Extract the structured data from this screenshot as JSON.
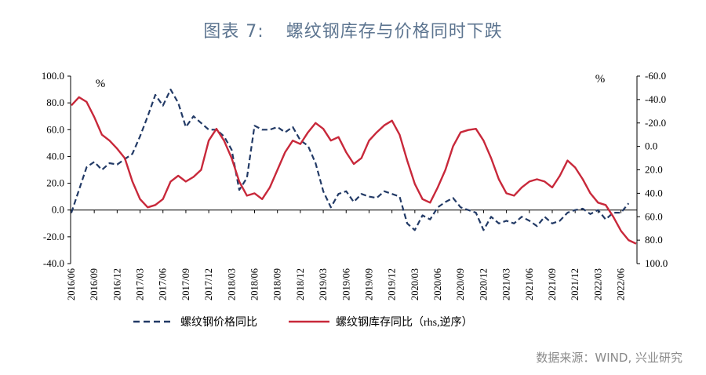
{
  "header": {
    "figure_label": "图表 7:",
    "title": "螺纹钢库存与价格同时下跌"
  },
  "footer": {
    "source": "数据来源：WIND, 兴业研究"
  },
  "colors": {
    "price": "#223a66",
    "inventory": "#c8283a",
    "axis": "#000000"
  },
  "chart_data": {
    "type": "line",
    "left_unit": "%",
    "right_unit": "%",
    "x_tick_labels": [
      "2016/06",
      "2016/09",
      "2016/12",
      "2017/03",
      "2017/06",
      "2017/09",
      "2017/12",
      "2018/03",
      "2018/06",
      "2018/09",
      "2018/12",
      "2019/03",
      "2019/06",
      "2019/09",
      "2019/12",
      "2020/03",
      "2020/06",
      "2020/09",
      "2020/12",
      "2021/03",
      "2021/06",
      "2021/09",
      "2021/12",
      "2022/03",
      "2022/06"
    ],
    "x_range": [
      "2016/06",
      "2022/08"
    ],
    "y_left": {
      "min": -40,
      "max": 100,
      "step": 20,
      "tick_labels": [
        "100.0",
        "80.0",
        "60.0",
        "40.0",
        "20.0",
        "0.0",
        "-20.0",
        "-40.0"
      ]
    },
    "y_right": {
      "min": -60,
      "max": 100,
      "step": 20,
      "inverted": true,
      "tick_labels": [
        "-60.0",
        "-40.0",
        "-20.0",
        "0.0",
        "20.0",
        "40.0",
        "60.0",
        "80.0",
        "100.0"
      ]
    },
    "series": [
      {
        "name": "螺纹钢价格同比",
        "axis": "left",
        "style": "dashed",
        "points": [
          [
            "2016/06",
            -2
          ],
          [
            "2016/07",
            15
          ],
          [
            "2016/08",
            32
          ],
          [
            "2016/09",
            36
          ],
          [
            "2016/10",
            30
          ],
          [
            "2016/11",
            35
          ],
          [
            "2016/12",
            34
          ],
          [
            "2017/01",
            38
          ],
          [
            "2017/02",
            42
          ],
          [
            "2017/03",
            55
          ],
          [
            "2017/04",
            70
          ],
          [
            "2017/05",
            86
          ],
          [
            "2017/06",
            78
          ],
          [
            "2017/07",
            90
          ],
          [
            "2017/08",
            80
          ],
          [
            "2017/09",
            62
          ],
          [
            "2017/10",
            70
          ],
          [
            "2017/11",
            65
          ],
          [
            "2017/12",
            60
          ],
          [
            "2018/01",
            60
          ],
          [
            "2018/02",
            55
          ],
          [
            "2018/03",
            45
          ],
          [
            "2018/04",
            15
          ],
          [
            "2018/05",
            24
          ],
          [
            "2018/06",
            63
          ],
          [
            "2018/07",
            60
          ],
          [
            "2018/08",
            60
          ],
          [
            "2018/09",
            62
          ],
          [
            "2018/10",
            58
          ],
          [
            "2018/11",
            62
          ],
          [
            "2018/12",
            52
          ],
          [
            "2019/01",
            48
          ],
          [
            "2019/02",
            35
          ],
          [
            "2019/03",
            14
          ],
          [
            "2019/04",
            2
          ],
          [
            "2019/05",
            12
          ],
          [
            "2019/06",
            14
          ],
          [
            "2019/07",
            6
          ],
          [
            "2019/08",
            12
          ],
          [
            "2019/09",
            10
          ],
          [
            "2019/10",
            9
          ],
          [
            "2019/11",
            14
          ],
          [
            "2019/12",
            12
          ],
          [
            "2020/01",
            10
          ],
          [
            "2020/02",
            -10
          ],
          [
            "2020/03",
            -15
          ],
          [
            "2020/04",
            -4
          ],
          [
            "2020/05",
            -7
          ],
          [
            "2020/06",
            2
          ],
          [
            "2020/07",
            6
          ],
          [
            "2020/08",
            9
          ],
          [
            "2020/09",
            2
          ],
          [
            "2020/10",
            0
          ],
          [
            "2020/11",
            -2
          ],
          [
            "2020/12",
            -15
          ],
          [
            "2021/01",
            -5
          ],
          [
            "2021/02",
            -10
          ],
          [
            "2021/03",
            -8
          ],
          [
            "2021/04",
            -10
          ],
          [
            "2021/05",
            -5
          ],
          [
            "2021/06",
            -8
          ],
          [
            "2021/07",
            -12
          ],
          [
            "2021/08",
            -5
          ],
          [
            "2021/09",
            -10
          ],
          [
            "2021/10",
            -8
          ],
          [
            "2021/11",
            -2
          ],
          [
            "2021/12",
            0
          ],
          [
            "2022/01",
            1
          ],
          [
            "2022/02",
            -3
          ],
          [
            "2022/03",
            0
          ],
          [
            "2022/04",
            -7
          ],
          [
            "2022/05",
            -2
          ],
          [
            "2022/06",
            -2
          ],
          [
            "2022/07",
            5
          ]
        ]
      },
      {
        "name": "螺纹钢库存同比（rhs,逆序）",
        "axis": "right",
        "style": "solid",
        "points": [
          [
            "2016/06",
            -35
          ],
          [
            "2016/07",
            -42
          ],
          [
            "2016/08",
            -38
          ],
          [
            "2016/09",
            -25
          ],
          [
            "2016/10",
            -10
          ],
          [
            "2016/11",
            -5
          ],
          [
            "2016/12",
            2
          ],
          [
            "2017/01",
            10
          ],
          [
            "2017/02",
            30
          ],
          [
            "2017/03",
            45
          ],
          [
            "2017/04",
            52
          ],
          [
            "2017/05",
            50
          ],
          [
            "2017/06",
            45
          ],
          [
            "2017/07",
            30
          ],
          [
            "2017/08",
            25
          ],
          [
            "2017/09",
            30
          ],
          [
            "2017/10",
            26
          ],
          [
            "2017/11",
            20
          ],
          [
            "2017/12",
            -5
          ],
          [
            "2018/01",
            -15
          ],
          [
            "2018/02",
            -5
          ],
          [
            "2018/03",
            10
          ],
          [
            "2018/04",
            30
          ],
          [
            "2018/05",
            42
          ],
          [
            "2018/06",
            40
          ],
          [
            "2018/07",
            45
          ],
          [
            "2018/08",
            35
          ],
          [
            "2018/09",
            20
          ],
          [
            "2018/10",
            5
          ],
          [
            "2018/11",
            -5
          ],
          [
            "2018/12",
            -2
          ],
          [
            "2019/01",
            -12
          ],
          [
            "2019/02",
            -20
          ],
          [
            "2019/03",
            -15
          ],
          [
            "2019/04",
            -5
          ],
          [
            "2019/05",
            -8
          ],
          [
            "2019/06",
            5
          ],
          [
            "2019/07",
            15
          ],
          [
            "2019/08",
            10
          ],
          [
            "2019/09",
            -5
          ],
          [
            "2019/10",
            -12
          ],
          [
            "2019/11",
            -18
          ],
          [
            "2019/12",
            -22
          ],
          [
            "2020/01",
            -10
          ],
          [
            "2020/02",
            12
          ],
          [
            "2020/03",
            32
          ],
          [
            "2020/04",
            45
          ],
          [
            "2020/05",
            48
          ],
          [
            "2020/06",
            35
          ],
          [
            "2020/07",
            20
          ],
          [
            "2020/08",
            0
          ],
          [
            "2020/09",
            -12
          ],
          [
            "2020/10",
            -14
          ],
          [
            "2020/11",
            -15
          ],
          [
            "2020/12",
            -5
          ],
          [
            "2021/01",
            10
          ],
          [
            "2021/02",
            28
          ],
          [
            "2021/03",
            40
          ],
          [
            "2021/04",
            42
          ],
          [
            "2021/05",
            35
          ],
          [
            "2021/06",
            30
          ],
          [
            "2021/07",
            28
          ],
          [
            "2021/08",
            30
          ],
          [
            "2021/09",
            35
          ],
          [
            "2021/10",
            25
          ],
          [
            "2021/11",
            12
          ],
          [
            "2021/12",
            18
          ],
          [
            "2022/01",
            28
          ],
          [
            "2022/02",
            40
          ],
          [
            "2022/03",
            48
          ],
          [
            "2022/04",
            50
          ],
          [
            "2022/05",
            60
          ],
          [
            "2022/06",
            72
          ],
          [
            "2022/07",
            80
          ],
          [
            "2022/08",
            83
          ]
        ]
      }
    ]
  }
}
